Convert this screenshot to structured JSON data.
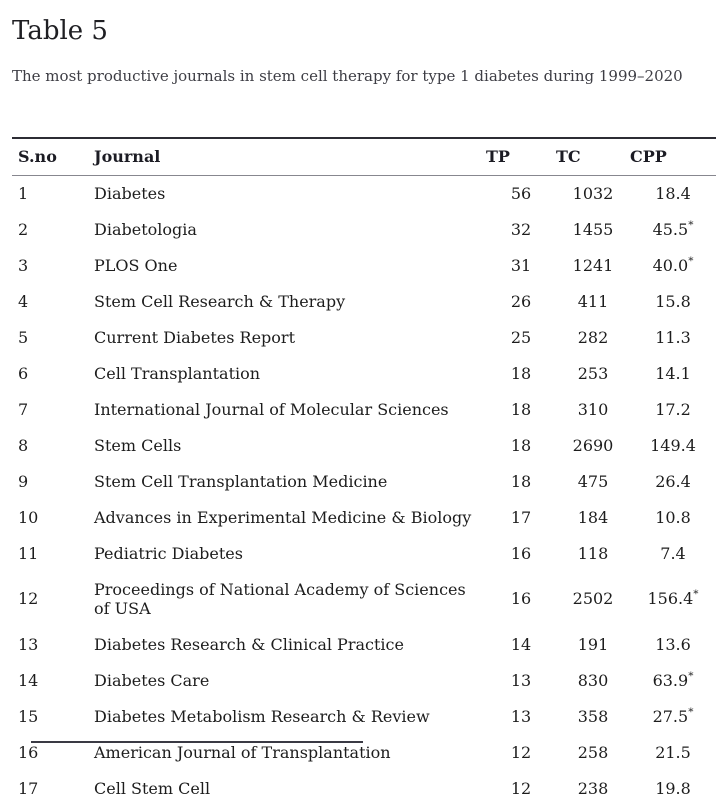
{
  "page": {
    "title": "Table 5",
    "subtitle": "The most productive journals in stem cell therapy for type 1 diabetes during 1999–2020"
  },
  "colors": {
    "text": "#1d1d1d",
    "caption_text": "#3d3d44",
    "rule_dark": "#2c2c34",
    "rule_light": "#87878f",
    "background": "#ffffff"
  },
  "table": {
    "columns": [
      "S.no",
      "Journal",
      "TP",
      "TC",
      "CPP"
    ],
    "footnote_symbol": "*",
    "rows": [
      {
        "sno": "1",
        "journal": "Diabetes",
        "tp": "56",
        "tc": "1032",
        "cpp": "18.4",
        "cpp_star": false
      },
      {
        "sno": "2",
        "journal": "Diabetologia",
        "tp": "32",
        "tc": "1455",
        "cpp": "45.5",
        "cpp_star": true
      },
      {
        "sno": "3",
        "journal": "PLOS One",
        "tp": "31",
        "tc": "1241",
        "cpp": "40.0",
        "cpp_star": true
      },
      {
        "sno": "4",
        "journal": "Stem Cell Research & Therapy",
        "tp": "26",
        "tc": "411",
        "cpp": "15.8",
        "cpp_star": false
      },
      {
        "sno": "5",
        "journal": "Current Diabetes Report",
        "tp": "25",
        "tc": "282",
        "cpp": "11.3",
        "cpp_star": false
      },
      {
        "sno": "6",
        "journal": "Cell Transplantation",
        "tp": "18",
        "tc": "253",
        "cpp": "14.1",
        "cpp_star": false
      },
      {
        "sno": "7",
        "journal": "International Journal of Molecular Sciences",
        "tp": "18",
        "tc": "310",
        "cpp": "17.2",
        "cpp_star": false
      },
      {
        "sno": "8",
        "journal": "Stem Cells",
        "tp": "18",
        "tc": "2690",
        "cpp": "149.4",
        "cpp_star": false
      },
      {
        "sno": "9",
        "journal": "Stem Cell Transplantation Medicine",
        "tp": "18",
        "tc": "475",
        "cpp": "26.4",
        "cpp_star": false
      },
      {
        "sno": "10",
        "journal": "Advances in Experimental Medicine & Biology",
        "tp": "17",
        "tc": "184",
        "cpp": "10.8",
        "cpp_star": false
      },
      {
        "sno": "11",
        "journal": "Pediatric Diabetes",
        "tp": "16",
        "tc": "118",
        "cpp": "7.4",
        "cpp_star": false
      },
      {
        "sno": "12",
        "journal": "Proceedings of National Academy of Sciences of USA",
        "tp": "16",
        "tc": "2502",
        "cpp": "156.4",
        "cpp_star": true
      },
      {
        "sno": "13",
        "journal": "Diabetes Research & Clinical Practice",
        "tp": "14",
        "tc": "191",
        "cpp": "13.6",
        "cpp_star": false
      },
      {
        "sno": "14",
        "journal": "Diabetes Care",
        "tp": "13",
        "tc": "830",
        "cpp": "63.9",
        "cpp_star": true
      },
      {
        "sno": "15",
        "journal": "Diabetes Metabolism Research & Review",
        "tp": "13",
        "tc": "358",
        "cpp": "27.5",
        "cpp_star": true
      },
      {
        "sno": "16",
        "journal": "American Journal of Transplantation",
        "tp": "12",
        "tc": "258",
        "cpp": "21.5",
        "cpp_star": false
      },
      {
        "sno": "17",
        "journal": "Cell Stem Cell",
        "tp": "12",
        "tc": "238",
        "cpp": "19.8",
        "cpp_star": false
      }
    ]
  }
}
